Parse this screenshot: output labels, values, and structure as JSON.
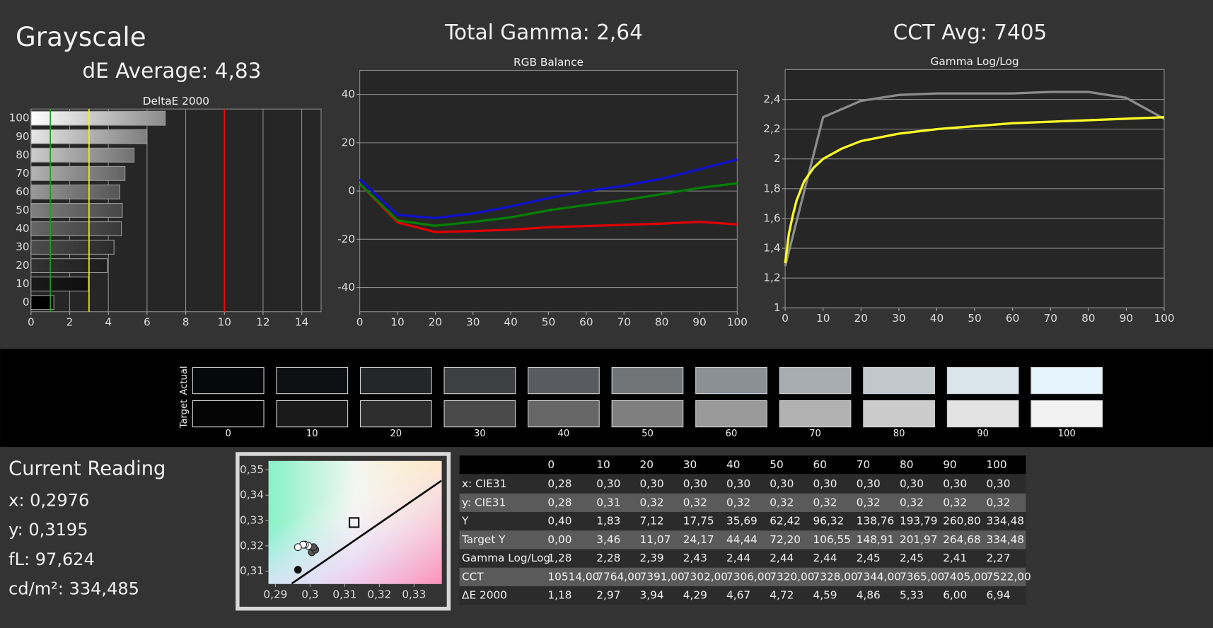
{
  "header": {
    "title": "Grayscale",
    "de_average": "dE Average: 4,83",
    "total_gamma": "Total Gamma: 2,64",
    "cct_avg": "CCT Avg: 7405"
  },
  "chart_data": [
    {
      "type": "bar",
      "orientation": "horizontal",
      "title": "DeltaE 2000",
      "categories": [
        "0",
        "10",
        "20",
        "30",
        "40",
        "50",
        "60",
        "70",
        "80",
        "90",
        "100"
      ],
      "values": [
        1.18,
        2.97,
        3.94,
        4.29,
        4.67,
        4.72,
        4.59,
        4.86,
        5.33,
        6.0,
        6.94
      ],
      "xlim": [
        0,
        15
      ],
      "xticks": [
        0,
        2,
        4,
        6,
        8,
        10,
        12,
        14
      ],
      "grid": "x",
      "reference_lines": [
        {
          "value": 1,
          "color": "#1f9a1f"
        },
        {
          "value": 3,
          "color": "#f0f020"
        },
        {
          "value": 10,
          "color": "#e01010"
        }
      ]
    },
    {
      "type": "line",
      "title": "RGB Balance",
      "x": [
        0,
        10,
        20,
        30,
        40,
        50,
        60,
        70,
        80,
        90,
        100
      ],
      "series": [
        {
          "color": "#e00000",
          "values": [
            3,
            -13,
            -17,
            -16.6,
            -16,
            -15,
            -14.5,
            -14,
            -13.5,
            -12.8,
            -13.8
          ]
        },
        {
          "color": "#008000",
          "values": [
            3,
            -12.2,
            -14.4,
            -12.8,
            -10.9,
            -8,
            -5.8,
            -3.8,
            -1.3,
            1.3,
            3.2
          ]
        },
        {
          "color": "#1010d0",
          "values": [
            4.8,
            -9.9,
            -11.2,
            -9.3,
            -6.4,
            -2.9,
            0,
            2.2,
            5.1,
            9,
            13.1
          ]
        }
      ],
      "xlim": [
        0,
        100
      ],
      "xticks": [
        0,
        10,
        20,
        30,
        40,
        50,
        60,
        70,
        80,
        90,
        100
      ],
      "ylim": [
        -50,
        50
      ],
      "yticks": [
        -40,
        -20,
        0,
        20,
        40
      ],
      "grid": "y"
    },
    {
      "type": "line",
      "title": "Gamma Log/Log",
      "x": [
        0,
        10,
        20,
        30,
        40,
        50,
        60,
        70,
        80,
        90,
        100
      ],
      "series": [
        {
          "color": "#8c8c8c",
          "values": [
            1.28,
            2.28,
            2.39,
            2.43,
            2.44,
            2.44,
            2.44,
            2.45,
            2.45,
            2.41,
            2.27
          ]
        },
        {
          "color": "#ffff28",
          "x": [
            0,
            1,
            2,
            3,
            5,
            7.5,
            10,
            15,
            20,
            30,
            40,
            50,
            60,
            70,
            80,
            90,
            100
          ],
          "values": [
            1.3,
            1.5,
            1.62,
            1.72,
            1.85,
            1.94,
            2.0,
            2.07,
            2.12,
            2.17,
            2.2,
            2.22,
            2.24,
            2.25,
            2.26,
            2.27,
            2.28
          ]
        }
      ],
      "xlim": [
        0,
        100
      ],
      "xticks": [
        0,
        10,
        20,
        30,
        40,
        50,
        60,
        70,
        80,
        90,
        100
      ],
      "ylim": [
        1,
        2.6
      ],
      "yticks": [
        1,
        {
          "value": 1.2,
          "label": "1,2"
        },
        {
          "value": 1.4,
          "label": "1,4"
        },
        {
          "value": 1.6,
          "label": "1,6"
        },
        {
          "value": 1.8,
          "label": "1,8"
        },
        2,
        {
          "value": 2.2,
          "label": "2,2"
        },
        {
          "value": 2.4,
          "label": "2,4"
        }
      ],
      "grid": "y"
    },
    {
      "type": "scatter",
      "series": [
        {
          "color": "#111111",
          "x": [
            0.2965
          ],
          "values": [
            0.3106
          ]
        },
        {
          "color": "#555555",
          "x": [
            0.3005,
            0.3015,
            0.301
          ],
          "values": [
            0.3175,
            0.3185,
            0.3195
          ]
        },
        {
          "color": "#ffffff",
          "x": [
            0.2995,
            0.2985,
            0.298,
            0.2965
          ],
          "values": [
            0.32,
            0.3205,
            0.3205,
            0.3195
          ]
        }
      ],
      "target": {
        "x": 0.3127,
        "y": 0.3292
      },
      "locus": {
        "x": [
          0.2947,
          0.3379
        ],
        "y": [
          0.3051,
          0.3457
        ]
      },
      "xlim": [
        0.288,
        0.338
      ],
      "xticks": [
        {
          "value": 0.29,
          "label": "0,29"
        },
        {
          "value": 0.3,
          "label": "0,3"
        },
        {
          "value": 0.31,
          "label": "0,31"
        },
        {
          "value": 0.32,
          "label": "0,32"
        },
        {
          "value": 0.33,
          "label": "0,33"
        }
      ],
      "ylim": [
        0.305,
        0.3535
      ],
      "yticks": [
        {
          "value": 0.31,
          "label": "0,31"
        },
        {
          "value": 0.32,
          "label": "0,32"
        },
        {
          "value": 0.33,
          "label": "0,33"
        },
        {
          "value": 0.34,
          "label": "0,34"
        },
        {
          "value": 0.35,
          "label": "0,35"
        }
      ],
      "grid": false
    }
  ],
  "swatches": {
    "row_labels": [
      "Actual",
      "Target"
    ],
    "levels": [
      "0",
      "10",
      "20",
      "30",
      "40",
      "50",
      "60",
      "70",
      "80",
      "90",
      "100"
    ],
    "actual_colors": [
      "#07080a",
      "#0e0f12",
      "#24262a",
      "#3e4044",
      "#585b5f",
      "#727578",
      "#8b9095",
      "#a7acb1",
      "#c1c8cd",
      "#dbe5ec",
      "#e6f4fb"
    ],
    "target_colors": [
      "#050505",
      "#1a1a1a",
      "#2e2e2e",
      "#4a4a4a",
      "#666666",
      "#7f7f7f",
      "#9a9a9a",
      "#b2b2b2",
      "#cbcbcb",
      "#e3e3e3",
      "#f2f2f2"
    ]
  },
  "current_reading": {
    "title": "Current Reading",
    "lines": [
      "x: 0,2976",
      "y: 0,3195",
      "fL: 97,624",
      "cd/m²: 334,485"
    ]
  },
  "table": {
    "columns": [
      "0",
      "10",
      "20",
      "30",
      "40",
      "50",
      "60",
      "70",
      "80",
      "90",
      "100"
    ],
    "rows": [
      {
        "label": "x: CIE31",
        "cells": [
          "0,28",
          "0,30",
          "0,30",
          "0,30",
          "0,30",
          "0,30",
          "0,30",
          "0,30",
          "0,30",
          "0,30",
          "0,30"
        ]
      },
      {
        "label": "y: CIE31",
        "cells": [
          "0,28",
          "0,31",
          "0,32",
          "0,32",
          "0,32",
          "0,32",
          "0,32",
          "0,32",
          "0,32",
          "0,32",
          "0,32"
        ]
      },
      {
        "label": "Y",
        "cells": [
          "0,40",
          "1,83",
          "7,12",
          "17,75",
          "35,69",
          "62,42",
          "96,32",
          "138,76",
          "193,79",
          "260,80",
          "334,48"
        ]
      },
      {
        "label": "Target Y",
        "cells": [
          "0,00",
          "3,46",
          "11,07",
          "24,17",
          "44,44",
          "72,20",
          "106,55",
          "148,91",
          "201,97",
          "264,68",
          "334,48"
        ]
      },
      {
        "label": "Gamma Log/Log",
        "cells": [
          "1,28",
          "2,28",
          "2,39",
          "2,43",
          "2,44",
          "2,44",
          "2,44",
          "2,45",
          "2,45",
          "2,41",
          "2,27"
        ]
      },
      {
        "label": "CCT",
        "cells": [
          "10514,00",
          "7764,00",
          "7391,00",
          "7302,00",
          "7306,00",
          "7320,00",
          "7328,00",
          "7344,00",
          "7365,00",
          "7405,00",
          "7522,00"
        ]
      },
      {
        "label": "ΔE 2000",
        "cells": [
          "1,18",
          "2,97",
          "3,94",
          "4,29",
          "4,67",
          "4,72",
          "4,59",
          "4,86",
          "5,33",
          "6,00",
          "6,94"
        ]
      }
    ]
  }
}
